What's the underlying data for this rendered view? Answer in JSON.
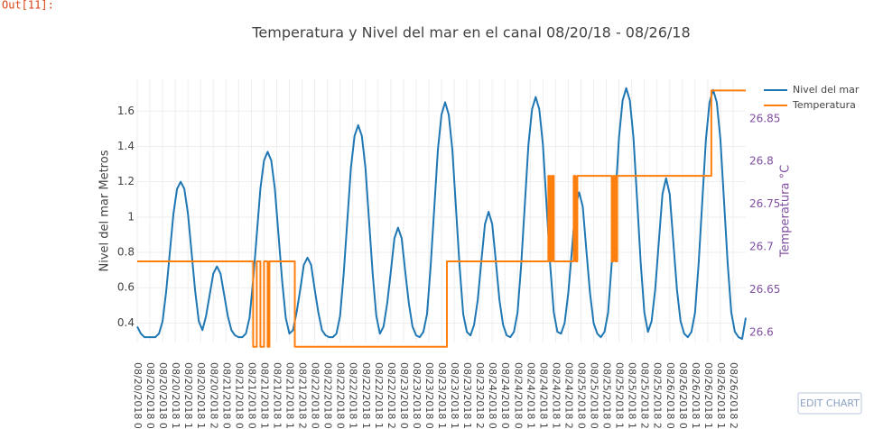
{
  "prompt": "Out[11]:",
  "edit_button": "EDIT CHART",
  "chart_data": {
    "type": "line",
    "title": "Temperatura y Nivel del mar en el canal 08/20/18 - 08/26/18",
    "y_label": "Nivel del mar Metros",
    "y2_label": "Temperatura °C",
    "legend": "top-right",
    "grid": true,
    "xlim": [
      0,
      168
    ],
    "xticks": [
      {
        "value": 0,
        "label": "08/20/2018 0"
      },
      {
        "value": 3.5,
        "label": "08/20/2018 0"
      },
      {
        "value": 7,
        "label": "08/20/2018 0"
      },
      {
        "value": 10.5,
        "label": "08/20/2018 1"
      },
      {
        "value": 14,
        "label": "08/20/2018 1"
      },
      {
        "value": 17.5,
        "label": "08/20/2018 1"
      },
      {
        "value": 21,
        "label": "08/20/2018 2"
      },
      {
        "value": 24.5,
        "label": "08/21/2018 0"
      },
      {
        "value": 28,
        "label": "08/21/2018 0"
      },
      {
        "value": 31.5,
        "label": "08/21/2018 0"
      },
      {
        "value": 35,
        "label": "08/21/2018 1"
      },
      {
        "value": 38.5,
        "label": "08/21/2018 1"
      },
      {
        "value": 42,
        "label": "08/21/2018 1"
      },
      {
        "value": 45.5,
        "label": "08/21/2018 2"
      },
      {
        "value": 49,
        "label": "08/22/2018 0"
      },
      {
        "value": 52.5,
        "label": "08/22/2018 0"
      },
      {
        "value": 56,
        "label": "08/22/2018 0"
      },
      {
        "value": 59.5,
        "label": "08/22/2018 1"
      },
      {
        "value": 63,
        "label": "08/22/2018 1"
      },
      {
        "value": 66.5,
        "label": "08/22/2018 1"
      },
      {
        "value": 70,
        "label": "08/22/2018 2"
      },
      {
        "value": 73.5,
        "label": "08/23/2018 0"
      },
      {
        "value": 77,
        "label": "08/23/2018 0"
      },
      {
        "value": 80.5,
        "label": "08/23/2018 0"
      },
      {
        "value": 84,
        "label": "08/23/2018 1"
      },
      {
        "value": 87.5,
        "label": "08/23/2018 1"
      },
      {
        "value": 91,
        "label": "08/23/2018 1"
      },
      {
        "value": 94.5,
        "label": "08/23/2018 2"
      },
      {
        "value": 98,
        "label": "08/24/2018 0"
      },
      {
        "value": 101.5,
        "label": "08/24/2018 0"
      },
      {
        "value": 105,
        "label": "08/24/2018 0"
      },
      {
        "value": 108.5,
        "label": "08/24/2018 1"
      },
      {
        "value": 112,
        "label": "08/24/2018 1"
      },
      {
        "value": 115.5,
        "label": "08/24/2018 1"
      },
      {
        "value": 119,
        "label": "08/24/2018 2"
      },
      {
        "value": 122.5,
        "label": "08/25/2018 0"
      },
      {
        "value": 126,
        "label": "08/25/2018 0"
      },
      {
        "value": 129.5,
        "label": "08/25/2018 0"
      },
      {
        "value": 133,
        "label": "08/25/2018 1"
      },
      {
        "value": 136.5,
        "label": "08/25/2018 1"
      },
      {
        "value": 140,
        "label": "08/25/2018 2"
      },
      {
        "value": 143.5,
        "label": "08/25/2018 2"
      },
      {
        "value": 147,
        "label": "08/26/2018 0"
      },
      {
        "value": 150.5,
        "label": "08/26/2018 0"
      },
      {
        "value": 154,
        "label": "08/26/2018 1"
      },
      {
        "value": 157.5,
        "label": "08/26/2018 1"
      },
      {
        "value": 161,
        "label": "08/26/2018 1"
      },
      {
        "value": 164.5,
        "label": "08/26/2018 2"
      }
    ],
    "ylim": [
      0.29,
      1.78
    ],
    "yticks": [
      0.4,
      0.6,
      0.8,
      1,
      1.2,
      1.4,
      1.6
    ],
    "y2lim": [
      26.585,
      26.893
    ],
    "y2ticks": [
      26.6,
      26.65,
      26.7,
      26.75,
      26.8,
      26.85
    ],
    "series": [
      {
        "name": "Nivel del mar",
        "color": "#1f77b4",
        "x": [
          0,
          1,
          2,
          3,
          4,
          5,
          6,
          7,
          8,
          9,
          10,
          11,
          12,
          13,
          14,
          15,
          16,
          17,
          18,
          19,
          20,
          21,
          22,
          23,
          24,
          25,
          26,
          27,
          28,
          29,
          30,
          31,
          32,
          33,
          34,
          35,
          36,
          37,
          38,
          39,
          40,
          41,
          42,
          43,
          44,
          45,
          46,
          47,
          48,
          49,
          50,
          51,
          52,
          53,
          54,
          55,
          56,
          57,
          58,
          59,
          60,
          61,
          62,
          63,
          64,
          65,
          66,
          67,
          68,
          69,
          70,
          71,
          72,
          73,
          74,
          75,
          76,
          77,
          78,
          79,
          80,
          81,
          82,
          83,
          84,
          85,
          86,
          87,
          88,
          89,
          90,
          91,
          92,
          93,
          94,
          95,
          96,
          97,
          98,
          99,
          100,
          101,
          102,
          103,
          104,
          105,
          106,
          107,
          108,
          109,
          110,
          111,
          112,
          113,
          114,
          115,
          116,
          117,
          118,
          119,
          120,
          121,
          122,
          123,
          124,
          125,
          126,
          127,
          128,
          129,
          130,
          131,
          132,
          133,
          134,
          135,
          136,
          137,
          138,
          139,
          140,
          141,
          142,
          143,
          144,
          145,
          146,
          147,
          148,
          149,
          150,
          151,
          152,
          153,
          154,
          155,
          156,
          157,
          158,
          159,
          160,
          161,
          162,
          163,
          164,
          165,
          166,
          167,
          168
        ],
        "values": [
          0.38,
          0.34,
          0.32,
          0.32,
          0.32,
          0.32,
          0.34,
          0.41,
          0.58,
          0.8,
          1.02,
          1.16,
          1.2,
          1.16,
          1.02,
          0.8,
          0.58,
          0.41,
          0.36,
          0.44,
          0.56,
          0.68,
          0.72,
          0.68,
          0.56,
          0.44,
          0.36,
          0.33,
          0.32,
          0.32,
          0.34,
          0.43,
          0.64,
          0.9,
          1.16,
          1.32,
          1.37,
          1.32,
          1.16,
          0.9,
          0.64,
          0.43,
          0.34,
          0.36,
          0.46,
          0.59,
          0.73,
          0.77,
          0.73,
          0.59,
          0.46,
          0.36,
          0.33,
          0.32,
          0.32,
          0.34,
          0.44,
          0.68,
          0.98,
          1.28,
          1.46,
          1.52,
          1.46,
          1.28,
          0.98,
          0.68,
          0.44,
          0.34,
          0.38,
          0.51,
          0.69,
          0.88,
          0.94,
          0.88,
          0.69,
          0.51,
          0.38,
          0.33,
          0.32,
          0.35,
          0.45,
          0.72,
          1.05,
          1.38,
          1.58,
          1.65,
          1.58,
          1.38,
          1.05,
          0.72,
          0.45,
          0.35,
          0.33,
          0.39,
          0.53,
          0.75,
          0.96,
          1.03,
          0.96,
          0.75,
          0.53,
          0.39,
          0.33,
          0.32,
          0.35,
          0.46,
          0.73,
          1.07,
          1.41,
          1.61,
          1.68,
          1.61,
          1.41,
          1.07,
          0.73,
          0.46,
          0.35,
          0.34,
          0.4,
          0.57,
          0.81,
          1.06,
          1.14,
          1.06,
          0.81,
          0.57,
          0.4,
          0.34,
          0.32,
          0.35,
          0.46,
          0.74,
          1.1,
          1.45,
          1.66,
          1.73,
          1.66,
          1.45,
          1.1,
          0.74,
          0.46,
          0.35,
          0.41,
          0.59,
          0.86,
          1.13,
          1.22,
          1.13,
          0.86,
          0.59,
          0.41,
          0.34,
          0.32,
          0.35,
          0.46,
          0.74,
          1.09,
          1.44,
          1.65,
          1.72,
          1.65,
          1.44,
          1.09,
          0.74,
          0.46,
          0.35,
          0.32,
          0.31,
          0.43
        ]
      },
      {
        "name": "Temperatura",
        "color": "#ff7f0e",
        "axis": "y2",
        "x": [
          0,
          32,
          32,
          33,
          33,
          34,
          34,
          35,
          35,
          36,
          36,
          36.5,
          36.5,
          43.5,
          43.5,
          85.5,
          85.5,
          113.5,
          113.5,
          114,
          114,
          114.5,
          114.5,
          115,
          115,
          120.5,
          120.5,
          121,
          121,
          121.5,
          121.5,
          131,
          131,
          131.5,
          131.5,
          132,
          132,
          132.5,
          132.5,
          158.5,
          158.5,
          168
        ],
        "values": [
          26.68,
          26.68,
          26.58,
          26.58,
          26.68,
          26.68,
          26.58,
          26.58,
          26.68,
          26.68,
          26.58,
          26.58,
          26.68,
          26.68,
          26.58,
          26.58,
          26.68,
          26.68,
          26.78,
          26.78,
          26.68,
          26.68,
          26.78,
          26.78,
          26.68,
          26.68,
          26.78,
          26.78,
          26.68,
          26.68,
          26.78,
          26.78,
          26.68,
          26.68,
          26.78,
          26.78,
          26.68,
          26.68,
          26.78,
          26.78,
          26.88,
          26.88
        ]
      }
    ]
  }
}
